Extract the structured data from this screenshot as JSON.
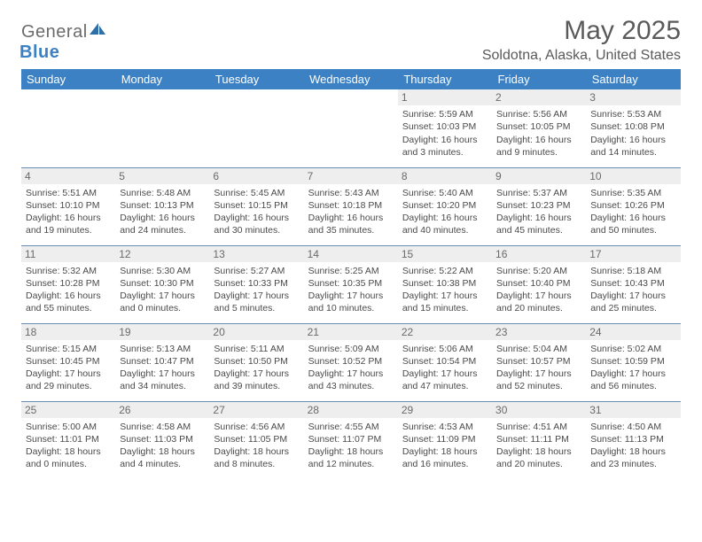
{
  "logo": {
    "general": "General",
    "blue": "Blue"
  },
  "title": "May 2025",
  "location": "Soldotna, Alaska, United States",
  "colors": {
    "header_bg": "#3b81c3",
    "header_text": "#ffffff",
    "daynum_bg": "#eeeeee",
    "rule": "#6b8db3",
    "body_text": "#4a4a4a",
    "title_text": "#5a5a5a"
  },
  "typography": {
    "title_fontsize": 30,
    "location_fontsize": 16,
    "header_fontsize": 13,
    "cell_fontsize": 10.5,
    "daynum_fontsize": 12
  },
  "weekdays": [
    "Sunday",
    "Monday",
    "Tuesday",
    "Wednesday",
    "Thursday",
    "Friday",
    "Saturday"
  ],
  "weeks": [
    [
      null,
      null,
      null,
      null,
      {
        "d": "1",
        "sr": "5:59 AM",
        "ss": "10:03 PM",
        "dl": "16 hours and 3 minutes."
      },
      {
        "d": "2",
        "sr": "5:56 AM",
        "ss": "10:05 PM",
        "dl": "16 hours and 9 minutes."
      },
      {
        "d": "3",
        "sr": "5:53 AM",
        "ss": "10:08 PM",
        "dl": "16 hours and 14 minutes."
      }
    ],
    [
      {
        "d": "4",
        "sr": "5:51 AM",
        "ss": "10:10 PM",
        "dl": "16 hours and 19 minutes."
      },
      {
        "d": "5",
        "sr": "5:48 AM",
        "ss": "10:13 PM",
        "dl": "16 hours and 24 minutes."
      },
      {
        "d": "6",
        "sr": "5:45 AM",
        "ss": "10:15 PM",
        "dl": "16 hours and 30 minutes."
      },
      {
        "d": "7",
        "sr": "5:43 AM",
        "ss": "10:18 PM",
        "dl": "16 hours and 35 minutes."
      },
      {
        "d": "8",
        "sr": "5:40 AM",
        "ss": "10:20 PM",
        "dl": "16 hours and 40 minutes."
      },
      {
        "d": "9",
        "sr": "5:37 AM",
        "ss": "10:23 PM",
        "dl": "16 hours and 45 minutes."
      },
      {
        "d": "10",
        "sr": "5:35 AM",
        "ss": "10:26 PM",
        "dl": "16 hours and 50 minutes."
      }
    ],
    [
      {
        "d": "11",
        "sr": "5:32 AM",
        "ss": "10:28 PM",
        "dl": "16 hours and 55 minutes."
      },
      {
        "d": "12",
        "sr": "5:30 AM",
        "ss": "10:30 PM",
        "dl": "17 hours and 0 minutes."
      },
      {
        "d": "13",
        "sr": "5:27 AM",
        "ss": "10:33 PM",
        "dl": "17 hours and 5 minutes."
      },
      {
        "d": "14",
        "sr": "5:25 AM",
        "ss": "10:35 PM",
        "dl": "17 hours and 10 minutes."
      },
      {
        "d": "15",
        "sr": "5:22 AM",
        "ss": "10:38 PM",
        "dl": "17 hours and 15 minutes."
      },
      {
        "d": "16",
        "sr": "5:20 AM",
        "ss": "10:40 PM",
        "dl": "17 hours and 20 minutes."
      },
      {
        "d": "17",
        "sr": "5:18 AM",
        "ss": "10:43 PM",
        "dl": "17 hours and 25 minutes."
      }
    ],
    [
      {
        "d": "18",
        "sr": "5:15 AM",
        "ss": "10:45 PM",
        "dl": "17 hours and 29 minutes."
      },
      {
        "d": "19",
        "sr": "5:13 AM",
        "ss": "10:47 PM",
        "dl": "17 hours and 34 minutes."
      },
      {
        "d": "20",
        "sr": "5:11 AM",
        "ss": "10:50 PM",
        "dl": "17 hours and 39 minutes."
      },
      {
        "d": "21",
        "sr": "5:09 AM",
        "ss": "10:52 PM",
        "dl": "17 hours and 43 minutes."
      },
      {
        "d": "22",
        "sr": "5:06 AM",
        "ss": "10:54 PM",
        "dl": "17 hours and 47 minutes."
      },
      {
        "d": "23",
        "sr": "5:04 AM",
        "ss": "10:57 PM",
        "dl": "17 hours and 52 minutes."
      },
      {
        "d": "24",
        "sr": "5:02 AM",
        "ss": "10:59 PM",
        "dl": "17 hours and 56 minutes."
      }
    ],
    [
      {
        "d": "25",
        "sr": "5:00 AM",
        "ss": "11:01 PM",
        "dl": "18 hours and 0 minutes."
      },
      {
        "d": "26",
        "sr": "4:58 AM",
        "ss": "11:03 PM",
        "dl": "18 hours and 4 minutes."
      },
      {
        "d": "27",
        "sr": "4:56 AM",
        "ss": "11:05 PM",
        "dl": "18 hours and 8 minutes."
      },
      {
        "d": "28",
        "sr": "4:55 AM",
        "ss": "11:07 PM",
        "dl": "18 hours and 12 minutes."
      },
      {
        "d": "29",
        "sr": "4:53 AM",
        "ss": "11:09 PM",
        "dl": "18 hours and 16 minutes."
      },
      {
        "d": "30",
        "sr": "4:51 AM",
        "ss": "11:11 PM",
        "dl": "18 hours and 20 minutes."
      },
      {
        "d": "31",
        "sr": "4:50 AM",
        "ss": "11:13 PM",
        "dl": "18 hours and 23 minutes."
      }
    ]
  ],
  "labels": {
    "sunrise": "Sunrise:",
    "sunset": "Sunset:",
    "daylight": "Daylight:"
  }
}
